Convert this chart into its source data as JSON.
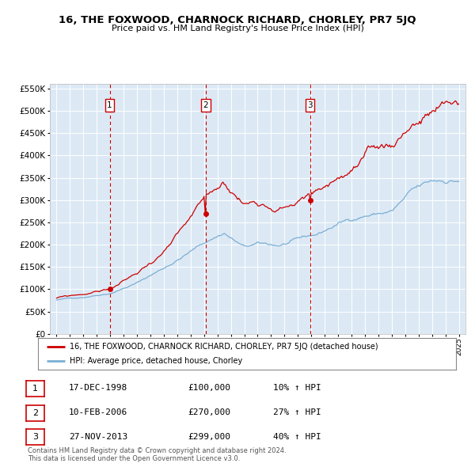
{
  "title": "16, THE FOXWOOD, CHARNOCK RICHARD, CHORLEY, PR7 5JQ",
  "subtitle": "Price paid vs. HM Land Registry's House Price Index (HPI)",
  "legend_line1": "16, THE FOXWOOD, CHARNOCK RICHARD, CHORLEY, PR7 5JQ (detached house)",
  "legend_line2": "HPI: Average price, detached house, Chorley",
  "footer1": "Contains HM Land Registry data © Crown copyright and database right 2024.",
  "footer2": "This data is licensed under the Open Government Licence v3.0.",
  "transactions": [
    {
      "label": "1",
      "date": "17-DEC-1998",
      "price": 100000,
      "pct": "10%",
      "x_year": 1998.96,
      "y": 100000
    },
    {
      "label": "2",
      "date": "10-FEB-2006",
      "price": 270000,
      "pct": "27%",
      "x_year": 2006.11,
      "y": 270000
    },
    {
      "label": "3",
      "date": "27-NOV-2013",
      "price": 299000,
      "pct": "40%",
      "x_year": 2013.9,
      "y": 299000
    }
  ],
  "background_color": "#dce9f5",
  "red_line_color": "#cc0000",
  "blue_line_color": "#7bafd4",
  "grid_color": "#ffffff",
  "vline_color": "#cc0000",
  "ylim": [
    0,
    560000
  ],
  "xlim": [
    1994.5,
    2025.5
  ],
  "yticks": [
    0,
    50000,
    100000,
    150000,
    200000,
    250000,
    300000,
    350000,
    400000,
    450000,
    500000,
    550000
  ],
  "xticks": [
    1995,
    1996,
    1997,
    1998,
    1999,
    2000,
    2001,
    2002,
    2003,
    2004,
    2005,
    2006,
    2007,
    2008,
    2009,
    2010,
    2011,
    2012,
    2013,
    2014,
    2015,
    2016,
    2017,
    2018,
    2019,
    2020,
    2021,
    2022,
    2023,
    2024,
    2025
  ]
}
